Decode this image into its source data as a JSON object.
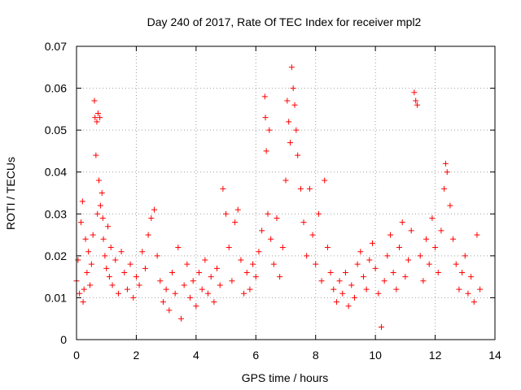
{
  "chart_data": {
    "type": "scatter",
    "title": "Day 240 of 2017, Rate Of TEC Index for receiver mpl2",
    "xlabel": "GPS time / hours",
    "ylabel": "ROTI / TECUs",
    "xlim": [
      0,
      14
    ],
    "ylim": [
      0,
      0.07
    ],
    "xticks": [
      0,
      2,
      4,
      6,
      8,
      10,
      12,
      14
    ],
    "xtick_labels": [
      "0",
      "2",
      "4",
      "6",
      "8",
      "10",
      "12",
      "14"
    ],
    "yticks": [
      0,
      0.01,
      0.02,
      0.03,
      0.04,
      0.05,
      0.06,
      0.07
    ],
    "ytick_labels": [
      "0",
      "0.01",
      "0.02",
      "0.03",
      "0.04",
      "0.05",
      "0.06",
      "0.07"
    ],
    "grid": true,
    "marker": "+",
    "color": "#ff0000",
    "series": [
      {
        "name": "ROTI",
        "points": [
          [
            0.0,
            0.014
          ],
          [
            0.05,
            0.019
          ],
          [
            0.1,
            0.011
          ],
          [
            0.15,
            0.028
          ],
          [
            0.2,
            0.033
          ],
          [
            0.22,
            0.009
          ],
          [
            0.25,
            0.012
          ],
          [
            0.3,
            0.024
          ],
          [
            0.35,
            0.016
          ],
          [
            0.4,
            0.021
          ],
          [
            0.45,
            0.013
          ],
          [
            0.5,
            0.018
          ],
          [
            0.55,
            0.025
          ],
          [
            0.6,
            0.057
          ],
          [
            0.62,
            0.053
          ],
          [
            0.65,
            0.044
          ],
          [
            0.68,
            0.052
          ],
          [
            0.7,
            0.03
          ],
          [
            0.72,
            0.054
          ],
          [
            0.75,
            0.038
          ],
          [
            0.78,
            0.053
          ],
          [
            0.8,
            0.032
          ],
          [
            0.85,
            0.035
          ],
          [
            0.88,
            0.029
          ],
          [
            0.9,
            0.024
          ],
          [
            0.95,
            0.02
          ],
          [
            1.0,
            0.017
          ],
          [
            1.05,
            0.027
          ],
          [
            1.1,
            0.015
          ],
          [
            1.15,
            0.022
          ],
          [
            1.2,
            0.013
          ],
          [
            1.3,
            0.019
          ],
          [
            1.4,
            0.011
          ],
          [
            1.5,
            0.021
          ],
          [
            1.6,
            0.016
          ],
          [
            1.7,
            0.012
          ],
          [
            1.8,
            0.018
          ],
          [
            1.9,
            0.01
          ],
          [
            2.0,
            0.015
          ],
          [
            2.1,
            0.013
          ],
          [
            2.2,
            0.021
          ],
          [
            2.3,
            0.017
          ],
          [
            2.4,
            0.025
          ],
          [
            2.5,
            0.029
          ],
          [
            2.6,
            0.031
          ],
          [
            2.7,
            0.02
          ],
          [
            2.8,
            0.014
          ],
          [
            2.9,
            0.009
          ],
          [
            3.0,
            0.012
          ],
          [
            3.1,
            0.007
          ],
          [
            3.2,
            0.016
          ],
          [
            3.3,
            0.011
          ],
          [
            3.4,
            0.022
          ],
          [
            3.5,
            0.005
          ],
          [
            3.6,
            0.013
          ],
          [
            3.7,
            0.018
          ],
          [
            3.8,
            0.01
          ],
          [
            3.9,
            0.014
          ],
          [
            4.0,
            0.008
          ],
          [
            4.1,
            0.016
          ],
          [
            4.2,
            0.012
          ],
          [
            4.3,
            0.019
          ],
          [
            4.4,
            0.011
          ],
          [
            4.5,
            0.015
          ],
          [
            4.6,
            0.009
          ],
          [
            4.7,
            0.017
          ],
          [
            4.8,
            0.013
          ],
          [
            4.9,
            0.036
          ],
          [
            5.0,
            0.03
          ],
          [
            5.1,
            0.022
          ],
          [
            5.2,
            0.014
          ],
          [
            5.3,
            0.028
          ],
          [
            5.4,
            0.031
          ],
          [
            5.5,
            0.019
          ],
          [
            5.6,
            0.011
          ],
          [
            5.7,
            0.016
          ],
          [
            5.8,
            0.012
          ],
          [
            5.9,
            0.018
          ],
          [
            6.0,
            0.015
          ],
          [
            6.1,
            0.021
          ],
          [
            6.2,
            0.026
          ],
          [
            6.3,
            0.058
          ],
          [
            6.32,
            0.053
          ],
          [
            6.35,
            0.045
          ],
          [
            6.4,
            0.03
          ],
          [
            6.45,
            0.05
          ],
          [
            6.5,
            0.024
          ],
          [
            6.6,
            0.018
          ],
          [
            6.7,
            0.029
          ],
          [
            6.8,
            0.015
          ],
          [
            6.9,
            0.022
          ],
          [
            7.0,
            0.038
          ],
          [
            7.05,
            0.057
          ],
          [
            7.1,
            0.052
          ],
          [
            7.15,
            0.047
          ],
          [
            7.2,
            0.065
          ],
          [
            7.25,
            0.06
          ],
          [
            7.3,
            0.056
          ],
          [
            7.35,
            0.05
          ],
          [
            7.4,
            0.044
          ],
          [
            7.5,
            0.036
          ],
          [
            7.6,
            0.028
          ],
          [
            7.7,
            0.02
          ],
          [
            7.8,
            0.036
          ],
          [
            7.9,
            0.025
          ],
          [
            8.0,
            0.018
          ],
          [
            8.1,
            0.03
          ],
          [
            8.2,
            0.014
          ],
          [
            8.3,
            0.038
          ],
          [
            8.4,
            0.022
          ],
          [
            8.5,
            0.016
          ],
          [
            8.6,
            0.012
          ],
          [
            8.7,
            0.009
          ],
          [
            8.8,
            0.014
          ],
          [
            8.9,
            0.011
          ],
          [
            9.0,
            0.016
          ],
          [
            9.1,
            0.008
          ],
          [
            9.2,
            0.013
          ],
          [
            9.3,
            0.01
          ],
          [
            9.4,
            0.018
          ],
          [
            9.5,
            0.021
          ],
          [
            9.6,
            0.015
          ],
          [
            9.7,
            0.012
          ],
          [
            9.8,
            0.019
          ],
          [
            9.9,
            0.023
          ],
          [
            10.0,
            0.017
          ],
          [
            10.1,
            0.011
          ],
          [
            10.2,
            0.003
          ],
          [
            10.3,
            0.014
          ],
          [
            10.4,
            0.02
          ],
          [
            10.5,
            0.025
          ],
          [
            10.6,
            0.016
          ],
          [
            10.7,
            0.012
          ],
          [
            10.8,
            0.022
          ],
          [
            10.9,
            0.028
          ],
          [
            11.0,
            0.015
          ],
          [
            11.1,
            0.019
          ],
          [
            11.2,
            0.026
          ],
          [
            11.3,
            0.059
          ],
          [
            11.35,
            0.057
          ],
          [
            11.4,
            0.056
          ],
          [
            11.5,
            0.02
          ],
          [
            11.6,
            0.014
          ],
          [
            11.7,
            0.024
          ],
          [
            11.8,
            0.018
          ],
          [
            11.9,
            0.029
          ],
          [
            12.0,
            0.022
          ],
          [
            12.1,
            0.016
          ],
          [
            12.2,
            0.026
          ],
          [
            12.3,
            0.036
          ],
          [
            12.35,
            0.042
          ],
          [
            12.4,
            0.04
          ],
          [
            12.5,
            0.032
          ],
          [
            12.6,
            0.024
          ],
          [
            12.7,
            0.018
          ],
          [
            12.8,
            0.012
          ],
          [
            12.9,
            0.016
          ],
          [
            13.0,
            0.02
          ],
          [
            13.1,
            0.011
          ],
          [
            13.2,
            0.015
          ],
          [
            13.3,
            0.009
          ],
          [
            13.4,
            0.025
          ],
          [
            13.5,
            0.012
          ]
        ]
      }
    ]
  }
}
